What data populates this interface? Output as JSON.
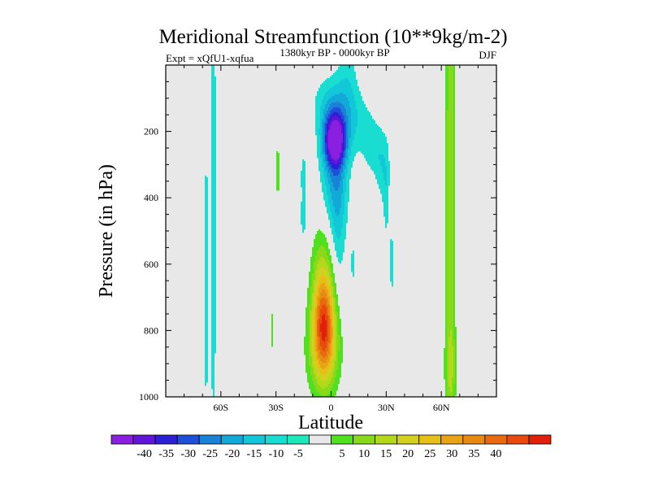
{
  "chart_data": {
    "type": "contour",
    "title": "Meridional Streamfunction (10**9kg/m-2)",
    "subtitle_left": "Expt = xQfU1-xqfua",
    "subtitle_center": "1380kyr BP - 0000kyr BP",
    "subtitle_right": "DJF",
    "xlabel": "Latitude",
    "ylabel": "Pressure (in hPa)",
    "xlim": [
      -90,
      90
    ],
    "ylim": [
      1000,
      0
    ],
    "x_ticks": [
      {
        "value": -60,
        "label": "60S"
      },
      {
        "value": -30,
        "label": "30S"
      },
      {
        "value": 0,
        "label": "0"
      },
      {
        "value": 30,
        "label": "30N"
      },
      {
        "value": 60,
        "label": "60N"
      }
    ],
    "y_ticks": [
      {
        "value": 200,
        "label": "200"
      },
      {
        "value": 400,
        "label": "400"
      },
      {
        "value": 600,
        "label": "600"
      },
      {
        "value": 800,
        "label": "800"
      },
      {
        "value": 1000,
        "label": "1000"
      }
    ],
    "contour_levels": [
      -40,
      -35,
      -30,
      -25,
      -20,
      -15,
      -10,
      -5,
      5,
      10,
      15,
      20,
      25,
      30,
      35,
      40
    ],
    "colorbar_colors": [
      "#8a1fe0",
      "#6016d8",
      "#2c1fd6",
      "#1d4fd8",
      "#1a82d6",
      "#12a8d8",
      "#12c8d8",
      "#19ddd0",
      "#1ee8b8",
      "#e8e8e8",
      "#50e020",
      "#8ad81a",
      "#b4d81a",
      "#d4d020",
      "#e6c018",
      "#e8a414",
      "#e88a12",
      "#e86a10",
      "#e84a0c",
      "#e0200a"
    ],
    "background_color": "#e8e8e8",
    "features": [
      {
        "name": "tropical-upper-negative-cell",
        "sign": "negative",
        "lat_range": [
          -12,
          20
        ],
        "pressure_range": [
          0,
          780
        ],
        "min_value": -35
      },
      {
        "name": "tropical-lower-positive-cell",
        "sign": "positive",
        "lat_range": [
          -15,
          7
        ],
        "pressure_range": [
          470,
          985
        ],
        "max_value": 35
      },
      {
        "name": "northern-high-lat-positive-band",
        "sign": "positive",
        "lat_range": [
          62,
          68
        ],
        "pressure_range": [
          0,
          975
        ],
        "max_value": 15
      },
      {
        "name": "southern-high-lat-negative-bands",
        "sign": "negative",
        "lat_range": [
          -76,
          -63
        ],
        "pressure_range": [
          0,
          935
        ],
        "min_value": -5
      },
      {
        "name": "subtropical-small-patches",
        "sign": "mixed",
        "lat_range": [
          -34,
          -16
        ],
        "pressure_range": [
          220,
          890
        ]
      }
    ]
  }
}
